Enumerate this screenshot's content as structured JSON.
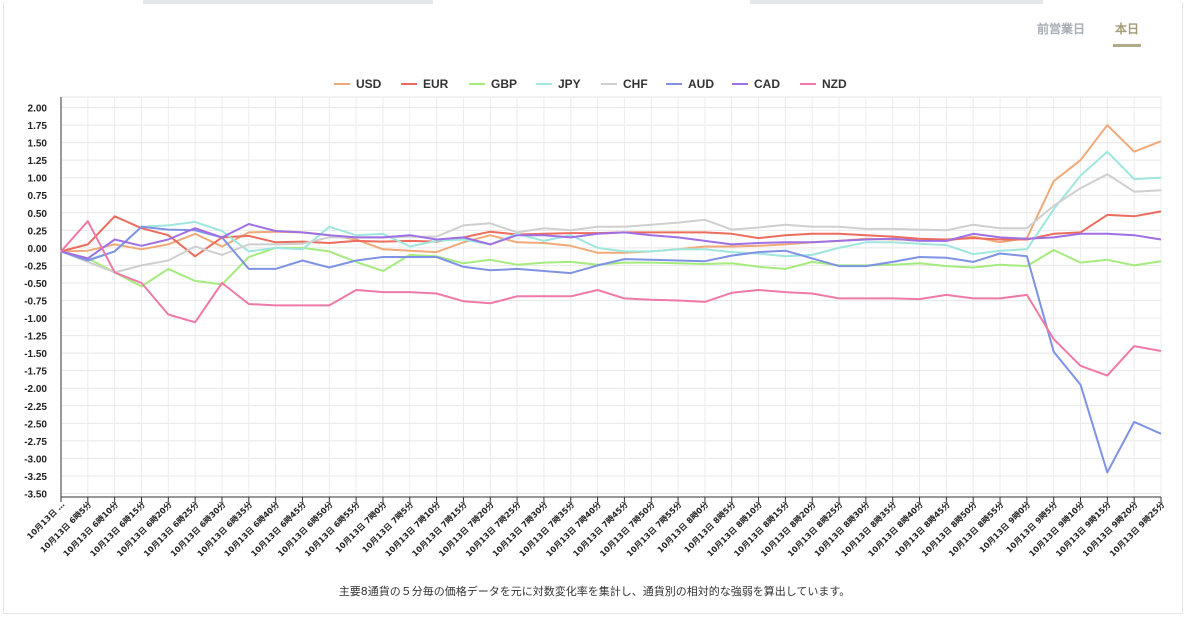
{
  "tabs": [
    {
      "label": "前営業日",
      "active": false
    },
    {
      "label": "本日",
      "active": true
    }
  ],
  "caption": "主要8通貨の５分毎の価格データを元に対数変化率を集計し、通貨別の相対的な強弱を算出しています。",
  "chart_data": {
    "type": "line",
    "legend_position": "top",
    "grid": true,
    "ylim": [
      -3.5,
      2.0
    ],
    "yticks": [
      "2.00",
      "1.75",
      "1.50",
      "1.25",
      "1.00",
      "0.75",
      "0.50",
      "0.25",
      "0.00",
      "-0.25",
      "-0.50",
      "-0.75",
      "-1.00",
      "-1.25",
      "-1.50",
      "-1.75",
      "-2.00",
      "-2.25",
      "-2.50",
      "-2.75",
      "-3.00",
      "-3.25",
      "-3.50"
    ],
    "categories": [
      "10月13日 …",
      "10月13日 6時5分",
      "10月13日 6時10分",
      "10月13日 6時15分",
      "10月13日 6時20分",
      "10月13日 6時25分",
      "10月13日 6時30分",
      "10月13日 6時35分",
      "10月13日 6時40分",
      "10月13日 6時45分",
      "10月13日 6時50分",
      "10月13日 6時55分",
      "10月13日 7時0分",
      "10月13日 7時5分",
      "10月13日 7時10分",
      "10月13日 7時15分",
      "10月13日 7時20分",
      "10月13日 7時25分",
      "10月13日 7時30分",
      "10月13日 7時35分",
      "10月13日 7時40分",
      "10月13日 7時45分",
      "10月13日 7時50分",
      "10月13日 7時55分",
      "10月13日 8時0分",
      "10月13日 8時5分",
      "10月13日 8時10分",
      "10月13日 8時15分",
      "10月13日 8時20分",
      "10月13日 8時25分",
      "10月13日 8時30分",
      "10月13日 8時35分",
      "10月13日 8時40分",
      "10月13日 8時45分",
      "10月13日 8時50分",
      "10月13日 8時55分",
      "10月13日 9時0分",
      "10月13日 9時5分",
      "10月13日 9時10分",
      "10月13日 9時15分",
      "10月13日 9時20分",
      "10月13日 9時25分"
    ],
    "series": [
      {
        "name": "USD",
        "color": "#f0a979",
        "values": [
          -0.05,
          -0.04,
          0.05,
          -0.02,
          0.05,
          0.2,
          0.02,
          0.22,
          0.23,
          0.22,
          0.18,
          0.12,
          -0.02,
          -0.04,
          -0.06,
          0.08,
          0.18,
          0.08,
          0.07,
          0.03,
          -0.07,
          -0.07,
          -0.05,
          -0.02,
          0.02,
          0.02,
          0.03,
          0.05,
          0.08,
          0.1,
          0.13,
          0.12,
          0.12,
          0.1,
          0.16,
          0.08,
          0.14,
          0.95,
          1.25,
          1.75,
          1.37,
          1.52
        ]
      },
      {
        "name": "EUR",
        "color": "#ec6c5e",
        "values": [
          -0.05,
          0.05,
          0.45,
          0.28,
          0.18,
          -0.12,
          0.15,
          0.17,
          0.08,
          0.09,
          0.07,
          0.1,
          0.09,
          0.1,
          0.09,
          0.15,
          0.23,
          0.19,
          0.2,
          0.21,
          0.21,
          0.22,
          0.22,
          0.22,
          0.22,
          0.2,
          0.14,
          0.18,
          0.2,
          0.2,
          0.18,
          0.16,
          0.13,
          0.12,
          0.14,
          0.12,
          0.12,
          0.2,
          0.22,
          0.47,
          0.45,
          0.52
        ]
      },
      {
        "name": "GBP",
        "color": "#a5eb7e",
        "values": [
          -0.05,
          -0.15,
          -0.35,
          -0.55,
          -0.3,
          -0.47,
          -0.52,
          -0.13,
          0.0,
          0.0,
          -0.05,
          -0.2,
          -0.33,
          -0.1,
          -0.12,
          -0.22,
          -0.17,
          -0.24,
          -0.21,
          -0.2,
          -0.24,
          -0.21,
          -0.21,
          -0.22,
          -0.23,
          -0.22,
          -0.27,
          -0.3,
          -0.2,
          -0.25,
          -0.25,
          -0.24,
          -0.22,
          -0.26,
          -0.28,
          -0.24,
          -0.26,
          -0.03,
          -0.21,
          -0.17,
          -0.25,
          -0.19
        ]
      },
      {
        "name": "JPY",
        "color": "#9ee6de",
        "values": [
          -0.05,
          -0.17,
          -0.05,
          0.3,
          0.32,
          0.37,
          0.24,
          -0.05,
          0.0,
          -0.02,
          0.3,
          0.18,
          0.2,
          0.02,
          0.1,
          0.12,
          0.05,
          0.2,
          0.1,
          0.18,
          0.0,
          -0.05,
          -0.05,
          -0.02,
          -0.02,
          -0.06,
          -0.08,
          -0.12,
          -0.1,
          0.0,
          0.08,
          0.08,
          0.06,
          0.04,
          -0.09,
          -0.04,
          -0.02,
          0.55,
          1.03,
          1.37,
          0.98,
          1.0
        ]
      },
      {
        "name": "CHF",
        "color": "#cfcfcf",
        "values": [
          -0.05,
          -0.2,
          -0.35,
          -0.25,
          -0.18,
          0.02,
          -0.1,
          0.05,
          0.05,
          0.06,
          0.15,
          0.15,
          0.15,
          0.16,
          0.16,
          0.32,
          0.35,
          0.22,
          0.28,
          0.25,
          0.3,
          0.3,
          0.33,
          0.36,
          0.4,
          0.26,
          0.29,
          0.33,
          0.3,
          0.3,
          0.27,
          0.27,
          0.26,
          0.25,
          0.33,
          0.28,
          0.28,
          0.6,
          0.85,
          1.05,
          0.8,
          0.82
        ]
      },
      {
        "name": "AUD",
        "color": "#7f93e4",
        "values": [
          -0.05,
          -0.18,
          -0.05,
          0.3,
          0.26,
          0.25,
          0.15,
          -0.3,
          -0.3,
          -0.18,
          -0.28,
          -0.18,
          -0.13,
          -0.13,
          -0.13,
          -0.27,
          -0.32,
          -0.3,
          -0.33,
          -0.36,
          -0.25,
          -0.16,
          -0.17,
          -0.18,
          -0.19,
          -0.11,
          -0.06,
          -0.04,
          -0.15,
          -0.26,
          -0.26,
          -0.2,
          -0.13,
          -0.14,
          -0.2,
          -0.08,
          -0.12,
          -1.48,
          -1.95,
          -3.2,
          -2.48,
          -2.65
        ]
      },
      {
        "name": "CAD",
        "color": "#9f70e3",
        "values": [
          -0.05,
          -0.15,
          0.12,
          0.03,
          0.12,
          0.28,
          0.15,
          0.34,
          0.24,
          0.22,
          0.18,
          0.15,
          0.15,
          0.18,
          0.12,
          0.15,
          0.05,
          0.18,
          0.18,
          0.15,
          0.2,
          0.22,
          0.18,
          0.15,
          0.1,
          0.05,
          0.07,
          0.08,
          0.08,
          0.1,
          0.12,
          0.13,
          0.1,
          0.1,
          0.2,
          0.15,
          0.13,
          0.15,
          0.2,
          0.2,
          0.18,
          0.12
        ]
      },
      {
        "name": "NZD",
        "color": "#ef7aa8",
        "values": [
          -0.05,
          0.38,
          -0.35,
          -0.5,
          -0.95,
          -1.06,
          -0.5,
          -0.8,
          -0.82,
          -0.82,
          -0.82,
          -0.6,
          -0.63,
          -0.63,
          -0.65,
          -0.76,
          -0.79,
          -0.69,
          -0.69,
          -0.69,
          -0.6,
          -0.72,
          -0.74,
          -0.75,
          -0.77,
          -0.64,
          -0.6,
          -0.63,
          -0.65,
          -0.72,
          -0.72,
          -0.72,
          -0.73,
          -0.67,
          -0.72,
          -0.72,
          -0.67,
          -1.3,
          -1.68,
          -1.82,
          -1.4,
          -1.47
        ]
      }
    ]
  }
}
